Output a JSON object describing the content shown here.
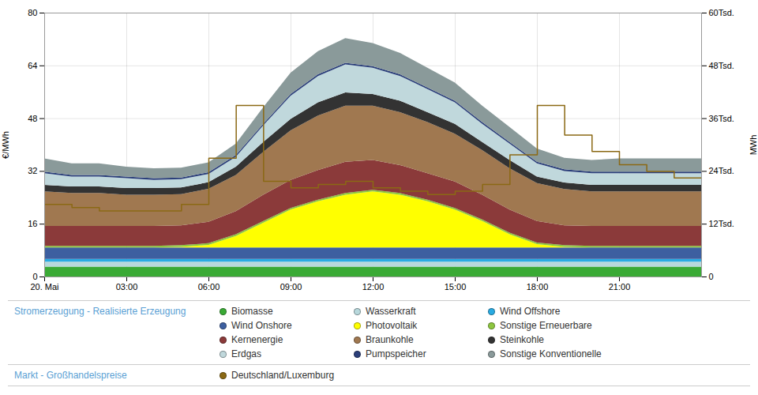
{
  "chart_data": {
    "type": "area",
    "stacked": true,
    "grid": true,
    "legend": "bottom",
    "x": [
      0,
      1,
      2,
      3,
      4,
      5,
      6,
      7,
      8,
      9,
      10,
      11,
      12,
      13,
      14,
      15,
      16,
      17,
      18,
      19,
      20,
      21,
      22,
      23,
      24
    ],
    "xlim": [
      0,
      24
    ],
    "xticks": [
      {
        "value": 0,
        "label": "20. Mai"
      },
      {
        "value": 3,
        "label": "03:00"
      },
      {
        "value": 6,
        "label": "06:00"
      },
      {
        "value": 9,
        "label": "09:00"
      },
      {
        "value": 12,
        "label": "12:00"
      },
      {
        "value": 15,
        "label": "15:00"
      },
      {
        "value": 18,
        "label": "18:00"
      },
      {
        "value": 21,
        "label": "21:00"
      }
    ],
    "ylabel": "€/MWh",
    "ylim": [
      0,
      80
    ],
    "yticks": [
      0,
      16,
      32,
      48,
      64,
      80
    ],
    "y2label": "MWh",
    "y2lim": [
      0,
      60000
    ],
    "y2ticks": [
      0,
      {
        "value": 12000,
        "label": "12Tsd."
      },
      {
        "value": 24000,
        "label": "24Tsd."
      },
      {
        "value": 36000,
        "label": "36Tsd."
      },
      {
        "value": 48000,
        "label": "48Tsd."
      },
      {
        "value": 60000,
        "label": "60Tsd."
      }
    ],
    "series": [
      {
        "name": "Biomasse",
        "group": "Stromerzeugung - Realisierte Erzeugung",
        "type": "area",
        "color": "#3aaa35",
        "values": [
          3.0,
          3.0,
          3.0,
          3.0,
          3.0,
          3.0,
          3.0,
          3.0,
          3.0,
          3.0,
          3.0,
          3.0,
          3.0,
          3.0,
          3.0,
          3.0,
          3.0,
          3.0,
          3.0,
          3.0,
          3.0,
          3.0,
          3.0,
          3.0,
          3.0
        ]
      },
      {
        "name": "Wasserkraft",
        "group": "Stromerzeugung - Realisierte Erzeugung",
        "type": "area",
        "color": "#b8d8dc",
        "values": [
          1.5,
          1.5,
          1.5,
          1.5,
          1.5,
          1.5,
          1.5,
          1.5,
          1.5,
          1.5,
          1.5,
          1.5,
          1.5,
          1.5,
          1.5,
          1.5,
          1.5,
          1.5,
          1.5,
          1.5,
          1.5,
          1.5,
          1.5,
          1.5,
          1.5
        ]
      },
      {
        "name": "Wind Offshore",
        "group": "Stromerzeugung - Realisierte Erzeugung",
        "type": "area",
        "color": "#29abe2",
        "values": [
          0.8,
          0.8,
          0.8,
          0.8,
          0.8,
          0.8,
          0.8,
          0.8,
          0.8,
          0.8,
          0.8,
          0.8,
          0.8,
          0.8,
          0.8,
          0.8,
          0.8,
          0.8,
          0.8,
          0.8,
          0.8,
          0.8,
          0.8,
          0.8,
          0.8
        ]
      },
      {
        "name": "Wind Onshore",
        "group": "Stromerzeugung - Realisierte Erzeugung",
        "type": "area",
        "color": "#3d5fa0",
        "values": [
          3.5,
          3.5,
          3.5,
          3.5,
          3.5,
          3.5,
          3.5,
          3.5,
          3.5,
          3.5,
          3.5,
          3.5,
          3.5,
          3.5,
          3.5,
          3.5,
          3.5,
          3.5,
          3.5,
          3.5,
          3.5,
          3.5,
          3.5,
          3.5,
          3.5
        ]
      },
      {
        "name": "Photovoltaik",
        "group": "Stromerzeugung - Realisierte Erzeugung",
        "type": "area",
        "color": "#ffff00",
        "values": [
          0.0,
          0.0,
          0.0,
          0.0,
          0.0,
          0.2,
          0.8,
          3.5,
          7.5,
          11.5,
          14.0,
          16.0,
          17.0,
          16.0,
          14.0,
          11.5,
          8.0,
          4.0,
          1.0,
          0.2,
          0.0,
          0.0,
          0.0,
          0.0,
          0.0
        ]
      },
      {
        "name": "Sonstige Erneuerbare",
        "group": "Stromerzeugung - Realisierte Erzeugung",
        "type": "area",
        "color": "#8dc63f",
        "values": [
          0.5,
          0.5,
          0.5,
          0.5,
          0.5,
          0.5,
          0.5,
          0.5,
          0.5,
          0.5,
          0.5,
          0.5,
          0.5,
          0.5,
          0.5,
          0.5,
          0.5,
          0.5,
          0.5,
          0.5,
          0.5,
          0.5,
          0.5,
          0.5,
          0.5
        ]
      },
      {
        "name": "Kernenergie",
        "group": "Stromerzeugung - Realisierte Erzeugung",
        "type": "area",
        "color": "#8b3a3a",
        "values": [
          6.0,
          6.0,
          6.0,
          6.0,
          6.0,
          6.0,
          6.5,
          7.0,
          8.0,
          8.5,
          9.0,
          9.5,
          9.0,
          8.5,
          8.0,
          8.0,
          7.5,
          7.0,
          6.5,
          6.0,
          6.0,
          6.0,
          6.0,
          6.0,
          6.0
        ]
      },
      {
        "name": "Braunkohle",
        "group": "Stromerzeugung - Realisierte Erzeugung",
        "type": "area",
        "color": "#a07850",
        "values": [
          10.5,
          10.0,
          10.0,
          9.5,
          9.5,
          9.5,
          10.0,
          11.0,
          13.0,
          15.0,
          16.5,
          17.0,
          16.5,
          16.0,
          15.5,
          14.5,
          13.5,
          12.5,
          11.5,
          11.0,
          10.5,
          10.5,
          10.5,
          10.5,
          10.5
        ]
      },
      {
        "name": "Steinkohle",
        "group": "Stromerzeugung - Realisierte Erzeugung",
        "type": "area",
        "color": "#333333",
        "values": [
          2.0,
          2.0,
          2.0,
          2.0,
          2.0,
          2.0,
          2.0,
          2.5,
          3.0,
          3.5,
          4.0,
          4.0,
          3.5,
          3.5,
          3.0,
          3.0,
          2.5,
          2.5,
          2.0,
          2.0,
          2.0,
          2.0,
          2.0,
          2.0,
          2.0
        ]
      },
      {
        "name": "Erdgas",
        "group": "Stromerzeugung - Realisierte Erzeugung",
        "type": "area",
        "color": "#c0d8dc",
        "values": [
          3.5,
          3.0,
          3.0,
          3.0,
          2.5,
          2.5,
          2.5,
          3.0,
          5.0,
          7.0,
          8.0,
          8.5,
          8.0,
          7.5,
          7.0,
          6.5,
          5.5,
          5.0,
          4.0,
          3.5,
          3.5,
          3.5,
          3.5,
          3.5,
          3.5
        ]
      },
      {
        "name": "Pumpspeicher",
        "group": "Stromerzeugung - Realisierte Erzeugung",
        "type": "area",
        "color": "#2b3f7a",
        "values": [
          0.5,
          0.5,
          0.5,
          0.5,
          0.5,
          0.5,
          0.5,
          0.5,
          0.5,
          0.5,
          0.5,
          0.5,
          0.5,
          0.5,
          0.5,
          0.5,
          0.5,
          0.5,
          0.5,
          0.5,
          0.5,
          0.5,
          0.5,
          0.5,
          0.5
        ]
      },
      {
        "name": "Sonstige Konventionelle",
        "group": "Stromerzeugung - Realisierte Erzeugung",
        "type": "area",
        "color": "#8a9a9a",
        "values": [
          4.0,
          3.5,
          3.5,
          3.0,
          3.0,
          3.0,
          3.0,
          3.5,
          5.0,
          6.5,
          7.0,
          7.5,
          7.0,
          6.5,
          6.0,
          5.5,
          5.0,
          4.5,
          4.0,
          3.5,
          3.5,
          4.0,
          4.0,
          4.0,
          4.0
        ]
      },
      {
        "name": "Deutschland/Luxemburg",
        "group": "Markt - Großhandelspreise",
        "type": "line",
        "color": "#8B6914",
        "x": [
          0,
          0,
          1,
          1,
          2,
          2,
          3,
          3,
          4,
          4,
          5,
          5,
          6,
          6,
          7,
          7,
          8,
          8,
          9,
          9,
          10,
          10,
          11,
          11,
          12,
          12,
          13,
          13,
          14,
          14,
          15,
          15,
          16,
          16,
          17,
          17,
          18,
          18,
          19,
          19,
          20,
          20,
          21,
          21,
          22,
          22,
          23,
          23,
          24,
          24
        ],
        "values": [
          22,
          22,
          22,
          21,
          21,
          20,
          20,
          20,
          20,
          20,
          20,
          22,
          22,
          36,
          36,
          52,
          52,
          29,
          29,
          27,
          27,
          28,
          28,
          29,
          29,
          27,
          27,
          26,
          26,
          25,
          25,
          26,
          26,
          28,
          28,
          37,
          37,
          52,
          52,
          43,
          43,
          38,
          38,
          34,
          34,
          32,
          32,
          30,
          30,
          30
        ]
      }
    ]
  }
}
